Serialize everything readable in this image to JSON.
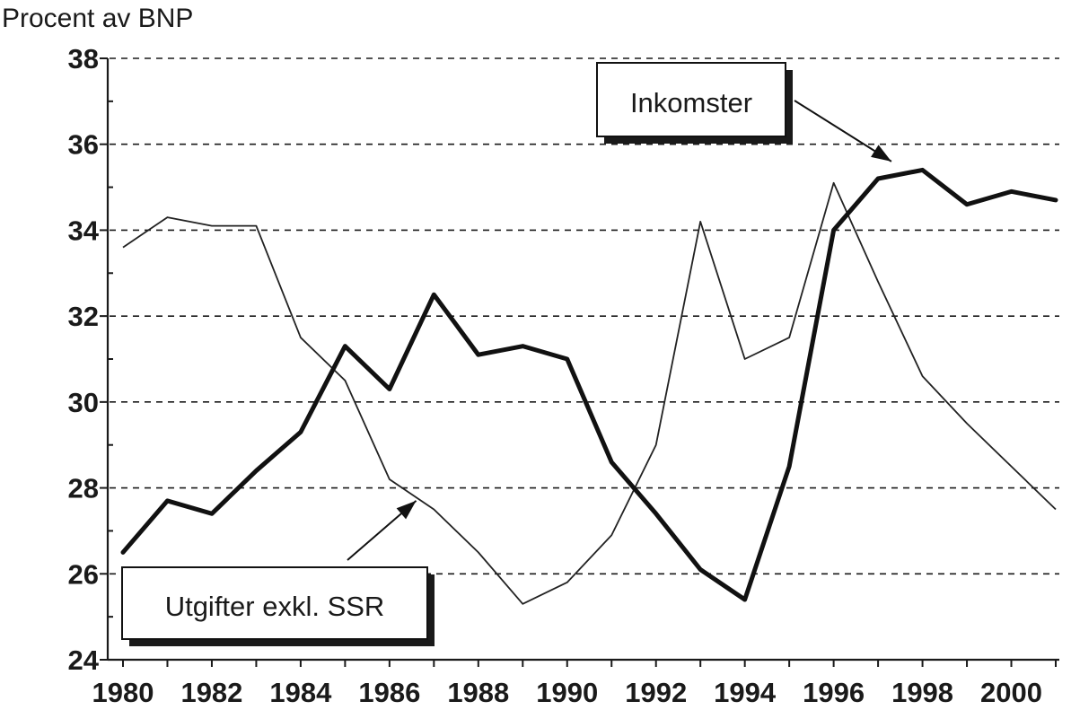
{
  "chart_data": {
    "type": "line",
    "ylabel": "Procent av BNP",
    "ylim": [
      24,
      38
    ],
    "yticks": [
      "24",
      "26",
      "28",
      "30",
      "32",
      "34",
      "36",
      "38"
    ],
    "xlim": [
      1980,
      2001
    ],
    "xticks": [
      "1980",
      "1982",
      "1984",
      "1986",
      "1988",
      "1990",
      "1992",
      "1994",
      "1996",
      "1998",
      "2000"
    ],
    "grid": "horizontal-dashed",
    "x": [
      1980,
      1981,
      1982,
      1983,
      1984,
      1985,
      1986,
      1987,
      1988,
      1989,
      1990,
      1991,
      1992,
      1993,
      1994,
      1995,
      1996,
      1997,
      1998,
      1999,
      2000,
      2001
    ],
    "series": [
      {
        "name": "Inkomster",
        "style": "thick",
        "values": [
          26.5,
          27.7,
          27.4,
          28.4,
          29.3,
          31.3,
          30.3,
          32.5,
          31.1,
          31.3,
          31.0,
          28.6,
          27.4,
          26.1,
          25.4,
          28.5,
          34.0,
          35.2,
          35.4,
          34.6,
          34.9,
          34.7
        ]
      },
      {
        "name": "Utgifter exkl. SSR",
        "style": "thin",
        "values": [
          33.6,
          34.3,
          34.1,
          34.1,
          31.5,
          30.5,
          28.2,
          27.5,
          26.5,
          25.3,
          25.8,
          26.9,
          29.0,
          34.2,
          31.0,
          31.5,
          35.1,
          32.8,
          30.6,
          29.5,
          28.5,
          27.5
        ]
      }
    ],
    "annotations": [
      {
        "label": "Inkomster",
        "points_to": {
          "x": 1997.3,
          "y": 35.6
        }
      },
      {
        "label": "Utgifter exkl. SSR",
        "points_to": {
          "x": 1986.6,
          "y": 27.7
        }
      }
    ]
  }
}
